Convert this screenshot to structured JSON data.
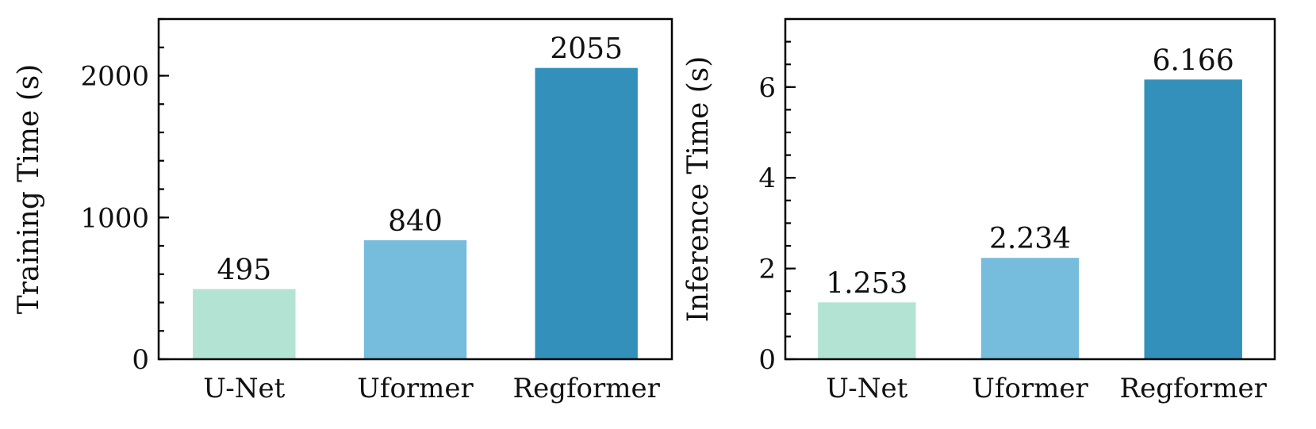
{
  "chart_data": [
    {
      "type": "bar",
      "categories": [
        "U-Net",
        "Uformer",
        "Regformer"
      ],
      "values": [
        495,
        840,
        2055
      ],
      "value_labels": [
        "495",
        "840",
        "2055"
      ],
      "title": "",
      "xlabel": "",
      "ylabel": "Training Time (s)",
      "ylim": [
        0,
        2400
      ],
      "yticks": [
        0,
        1000,
        2000
      ],
      "ytick_labels": [
        "0",
        "1000",
        "2000"
      ],
      "yminor_step": 200,
      "colors": [
        "#b3e3d3",
        "#76bcdd",
        "#3290bb"
      ],
      "grid": false
    },
    {
      "type": "bar",
      "categories": [
        "U-Net",
        "Uformer",
        "Regformer"
      ],
      "values": [
        1.253,
        2.234,
        6.166
      ],
      "value_labels": [
        "1.253",
        "2.234",
        "6.166"
      ],
      "title": "",
      "xlabel": "",
      "ylabel": "Inference Time (s)",
      "ylim": [
        0,
        7.5
      ],
      "yticks": [
        0,
        2,
        4,
        6
      ],
      "ytick_labels": [
        "0",
        "2",
        "4",
        "6"
      ],
      "yminor_step": 0.5,
      "colors": [
        "#b3e3d3",
        "#76bcdd",
        "#3290bb"
      ],
      "grid": false
    }
  ]
}
